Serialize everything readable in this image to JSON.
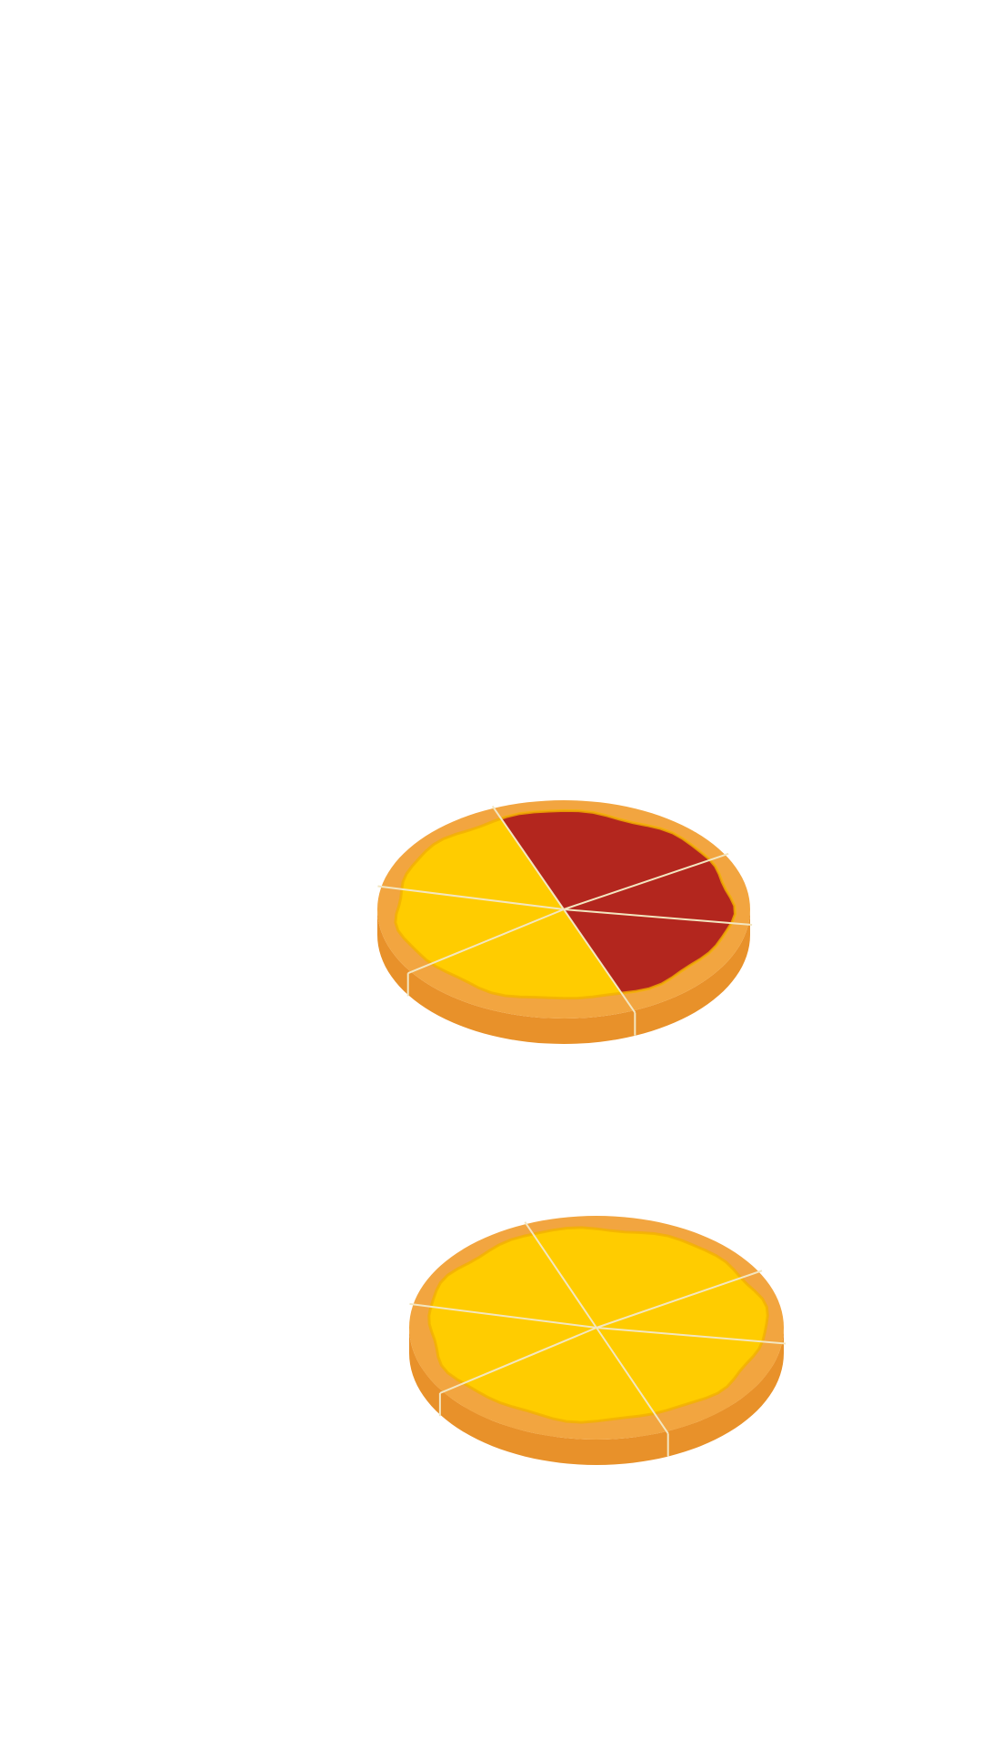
{
  "colors": {
    "background": "#ffffff",
    "crust": "#f2a540",
    "crust_edge": "#e8912a",
    "crust_rim_line": "#f8c27a",
    "cheese": "#ffcc00",
    "cheese_edge": "#f2b200",
    "sauce": "#b3261e",
    "sauce_edge": "#d6531a",
    "cut_line": "#f3e6c0"
  },
  "pizzas": [
    {
      "name": "pizza-half-sauce",
      "slices": [
        {
          "topping": "sauce"
        },
        {
          "topping": "sauce"
        },
        {
          "topping": "sauce"
        },
        {
          "topping": "cheese"
        },
        {
          "topping": "cheese"
        },
        {
          "topping": "cheese"
        }
      ]
    },
    {
      "name": "pizza-all-cheese",
      "slices": [
        {
          "topping": "cheese"
        },
        {
          "topping": "cheese"
        },
        {
          "topping": "cheese"
        },
        {
          "topping": "cheese"
        },
        {
          "topping": "cheese"
        },
        {
          "topping": "cheese"
        }
      ]
    }
  ]
}
